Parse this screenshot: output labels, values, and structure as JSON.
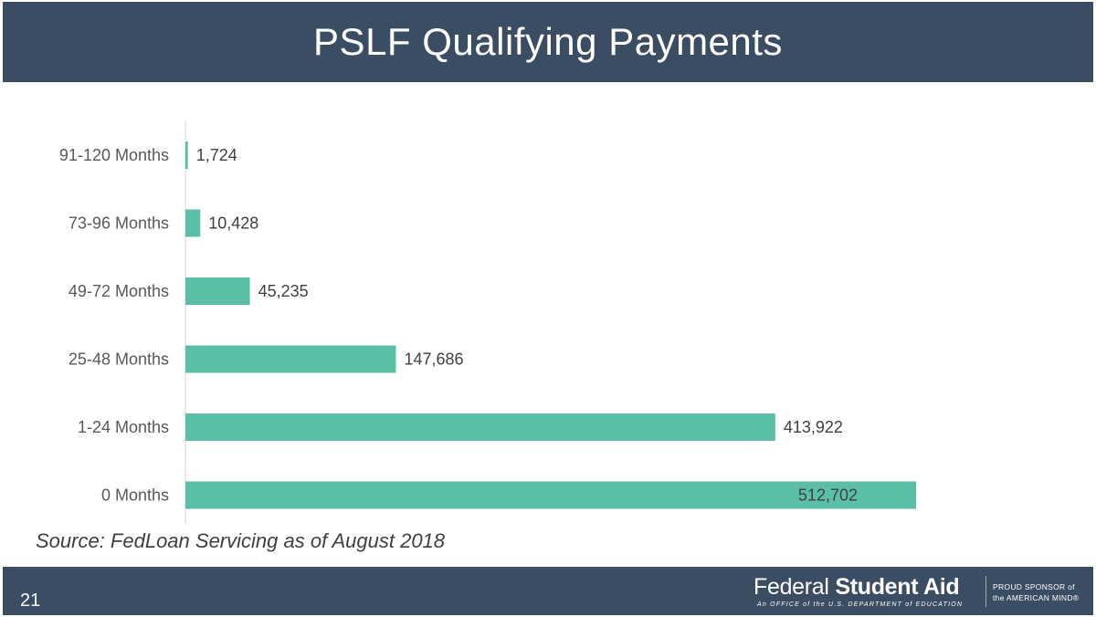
{
  "slide": {
    "title": "PSLF Qualifying Payments",
    "source": "Source: FedLoan Servicing as of August 2018",
    "page_number": "21"
  },
  "logo": {
    "name_light": "Federal",
    "name_bold": "Student Aid",
    "tagline": "An OFFICE of the U.S. DEPARTMENT of EDUCATION",
    "sponsor_line1": "PROUD SPONSOR of",
    "sponsor_line2": "the AMERICAN MIND®"
  },
  "colors": {
    "header": "#3b4d63",
    "bar": "#5bbfa7"
  },
  "chart_data": {
    "type": "bar",
    "orientation": "horizontal",
    "categories": [
      "91-120 Months",
      "73-96 Months",
      "49-72 Months",
      "25-48 Months",
      "1-24 Months",
      "0 Months"
    ],
    "values": [
      1724,
      10428,
      45235,
      147686,
      413922,
      512702
    ],
    "value_labels": [
      "1,724",
      "10,428",
      "45,235",
      "147,686",
      "413,922",
      "512,702"
    ],
    "xlim": [
      0,
      512702
    ],
    "grid": false,
    "legend": false
  }
}
